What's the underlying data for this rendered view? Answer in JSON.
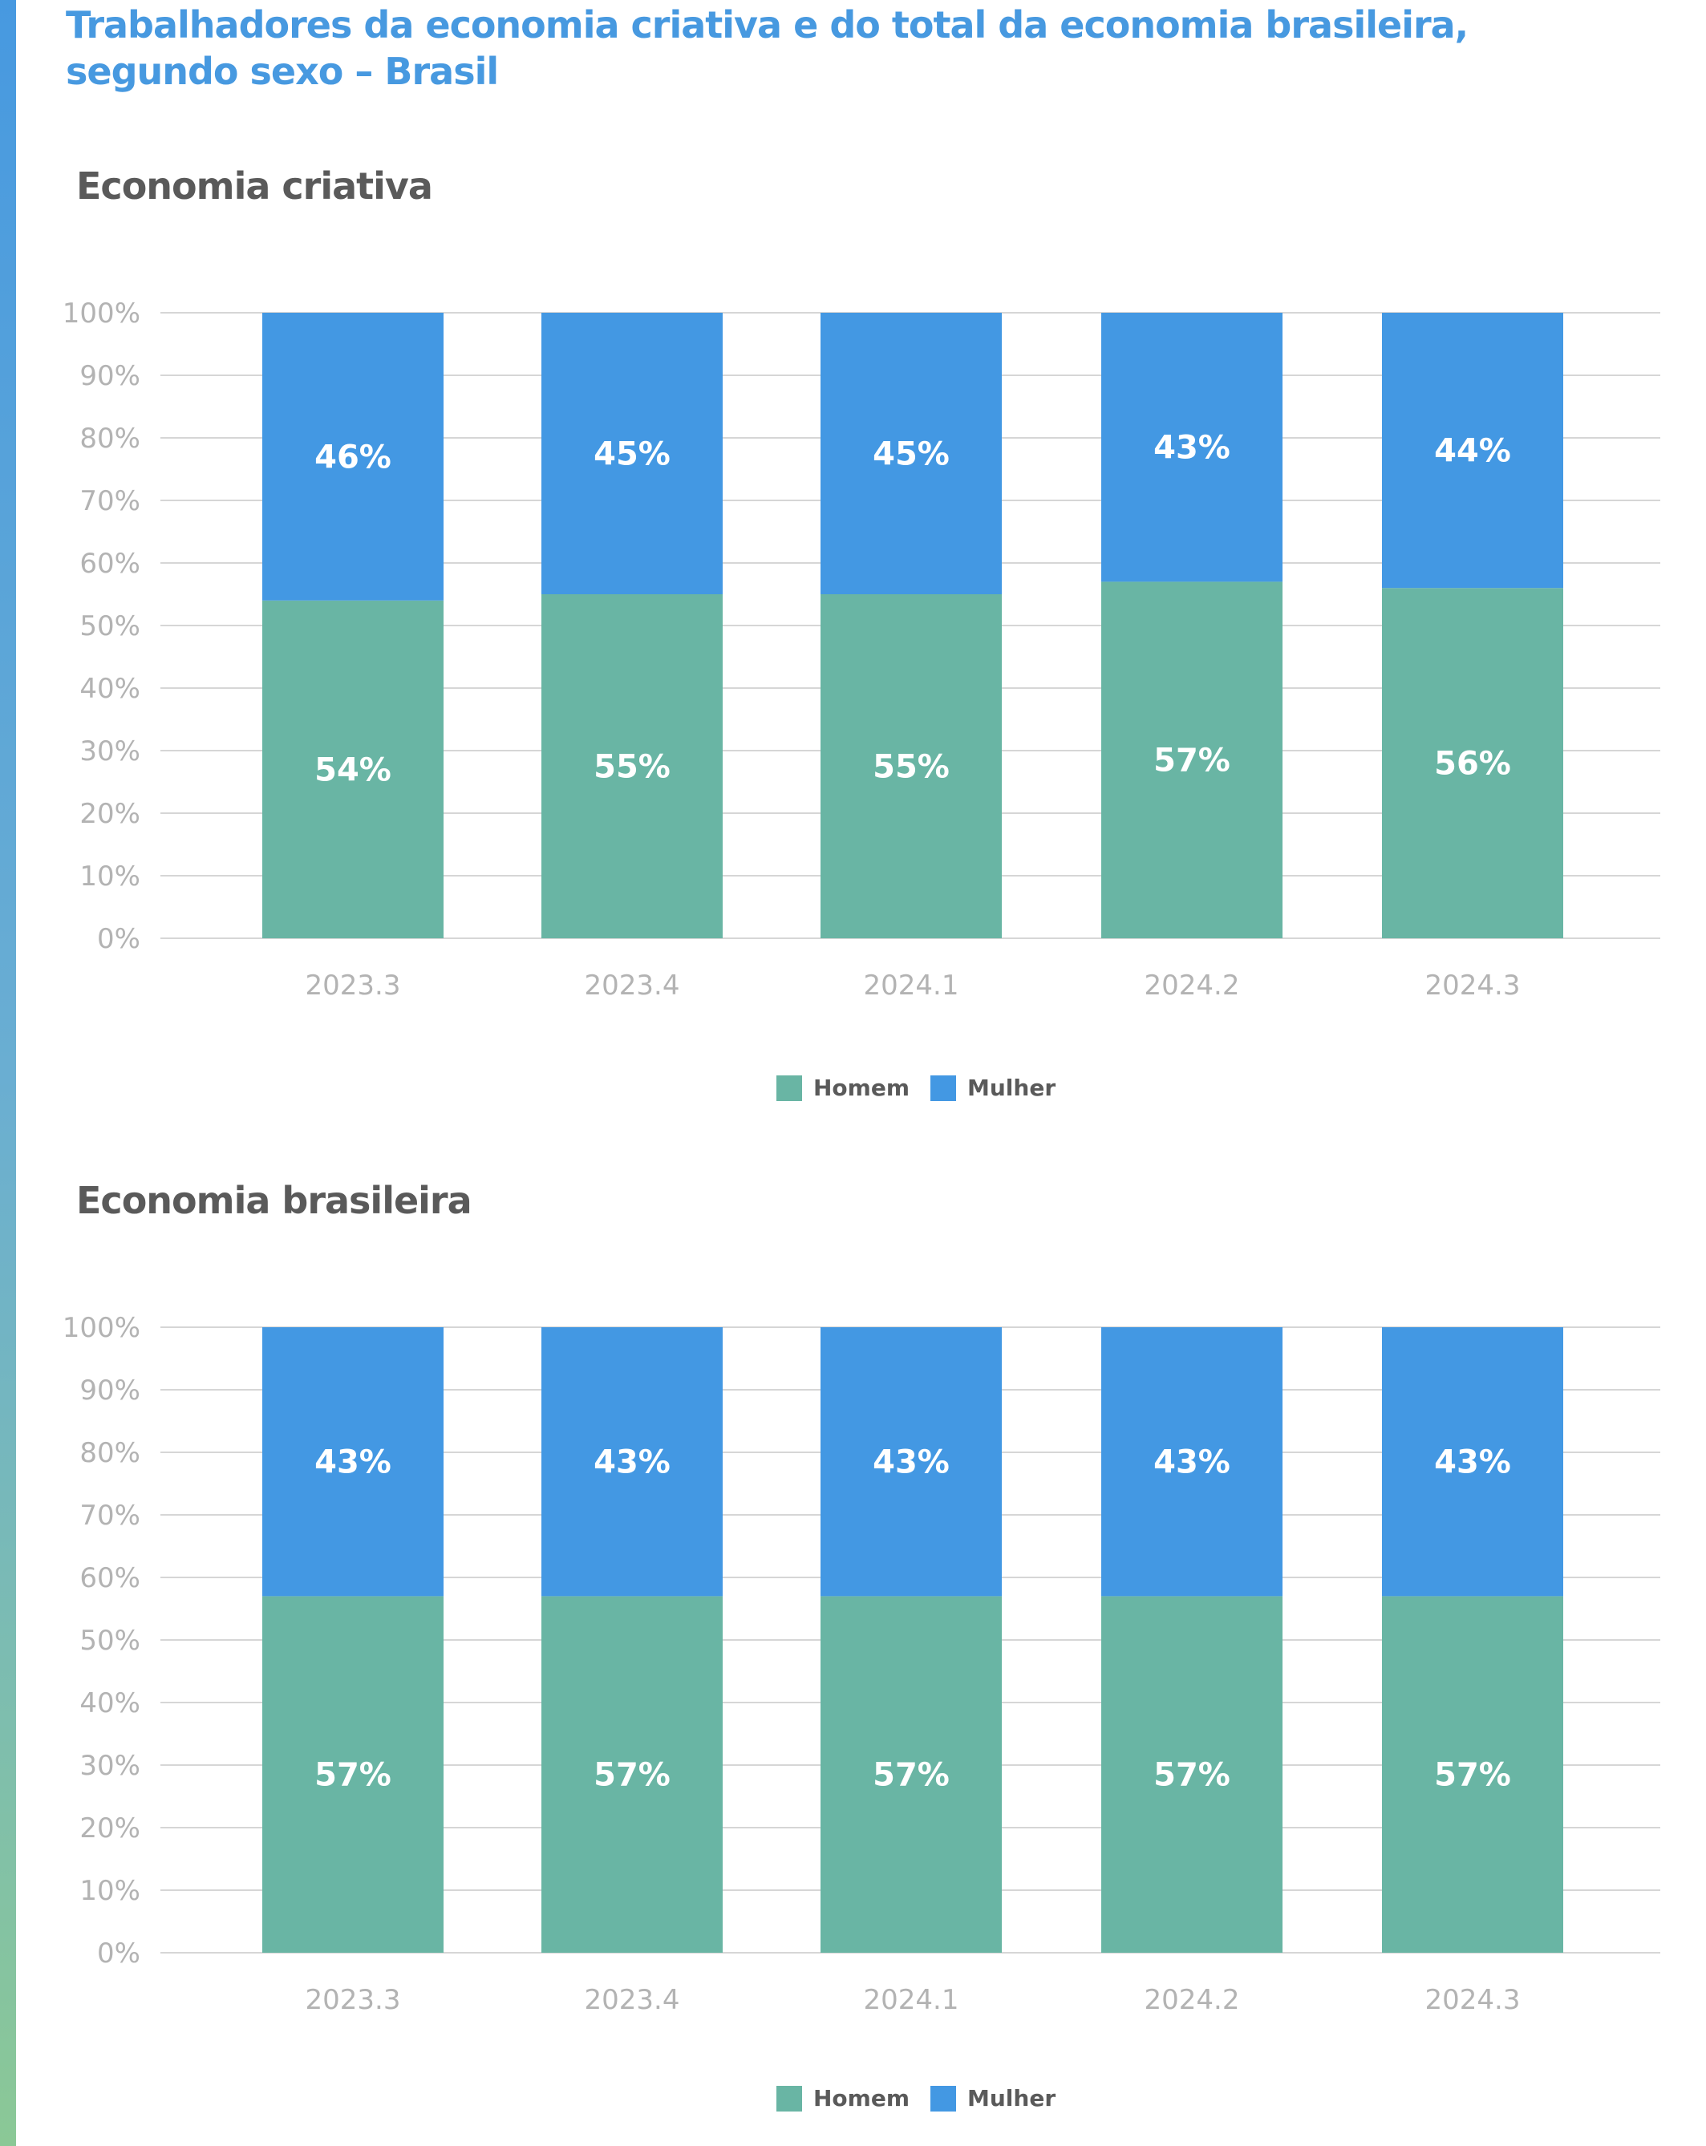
{
  "page": {
    "title": "Trabalhadores da economia criativa e do total da economia brasileira, segundo sexo – Brasil"
  },
  "colors": {
    "homem": "#69b5a4",
    "mulher": "#4398e3",
    "grid": "#d6d6d6",
    "axis_text": "#b3b3b3"
  },
  "chart_data": [
    {
      "type": "bar",
      "stacked": true,
      "title": "Economia criativa",
      "categories": [
        "2023.3",
        "2023.4",
        "2024.1",
        "2024.2",
        "2024.3"
      ],
      "series": [
        {
          "name": "Homem",
          "values": [
            54,
            55,
            55,
            57,
            56
          ],
          "labels": [
            "54%",
            "55%",
            "55%",
            "57%",
            "56%"
          ]
        },
        {
          "name": "Mulher",
          "values": [
            46,
            45,
            45,
            43,
            44
          ],
          "labels": [
            "46%",
            "45%",
            "45%",
            "43%",
            "44%"
          ]
        }
      ],
      "ylim": [
        0,
        100
      ],
      "yticks": [
        "0%",
        "10%",
        "20%",
        "30%",
        "40%",
        "50%",
        "60%",
        "70%",
        "80%",
        "90%",
        "100%"
      ],
      "grid": true,
      "legend_position": "bottom"
    },
    {
      "type": "bar",
      "stacked": true,
      "title": "Economia brasileira",
      "categories": [
        "2023.3",
        "2023.4",
        "2024.1",
        "2024.2",
        "2024.3"
      ],
      "series": [
        {
          "name": "Homem",
          "values": [
            57,
            57,
            57,
            57,
            57
          ],
          "labels": [
            "57%",
            "57%",
            "57%",
            "57%",
            "57%"
          ]
        },
        {
          "name": "Mulher",
          "values": [
            43,
            43,
            43,
            43,
            43
          ],
          "labels": [
            "43%",
            "43%",
            "43%",
            "43%",
            "43%"
          ]
        }
      ],
      "ylim": [
        0,
        100
      ],
      "yticks": [
        "0%",
        "10%",
        "20%",
        "30%",
        "40%",
        "50%",
        "60%",
        "70%",
        "80%",
        "90%",
        "100%"
      ],
      "grid": true,
      "legend_position": "bottom"
    }
  ]
}
